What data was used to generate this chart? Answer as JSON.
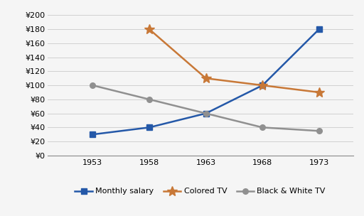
{
  "years": [
    1953,
    1958,
    1963,
    1968,
    1973
  ],
  "monthly_salary": [
    30,
    40,
    60,
    100,
    180
  ],
  "colored_tv": [
    null,
    180,
    110,
    100,
    90
  ],
  "black_white_tv": [
    100,
    80,
    60,
    40,
    35
  ],
  "ylim": [
    0,
    200
  ],
  "yticks": [
    0,
    20,
    40,
    60,
    80,
    100,
    120,
    140,
    160,
    180,
    200
  ],
  "xticks": [
    1953,
    1958,
    1963,
    1968,
    1973
  ],
  "salary_color": "#2458A8",
  "colored_tv_color": "#C87837",
  "bw_tv_color": "#909090",
  "background_color": "#f5f5f5",
  "legend_labels": [
    "Monthly salary",
    "Colored TV",
    "Black & White TV"
  ],
  "ylabel_prefix": "¥",
  "xlim_left": 1949,
  "xlim_right": 1976
}
